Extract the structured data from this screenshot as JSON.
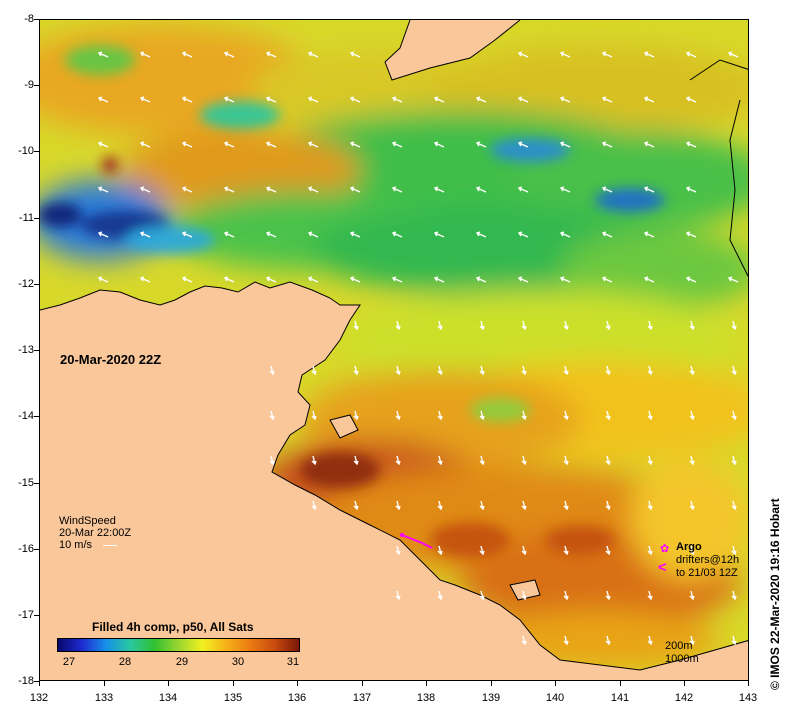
{
  "map": {
    "date_label": "20-Mar-2020 22Z",
    "x_ticks": [
      "132",
      "133",
      "134",
      "135",
      "136",
      "137",
      "138",
      "139",
      "140",
      "141",
      "142",
      "143"
    ],
    "y_ticks": [
      "-8",
      "-9",
      "-10",
      "-11",
      "-12",
      "-13",
      "-14",
      "-15",
      "-16",
      "-17",
      "-18"
    ],
    "colors": {
      "land": "#f9c79a",
      "coast": "#000000",
      "wind_arrow": "#ffffff",
      "argo": "#ff00ff"
    }
  },
  "wind": {
    "title": "WindSpeed",
    "time": "20-Mar 22:00Z",
    "scale": "10 m/s"
  },
  "colorbar": {
    "title": "Filled 4h comp, p50, All Sats",
    "ticks": [
      "27",
      "28",
      "29",
      "30",
      "31"
    ]
  },
  "legend": {
    "argo": "Argo",
    "drifters": "drifters@12h",
    "drifters_to": "to 21/03 12Z",
    "contour_200": "200m",
    "contour_1000": "1000m"
  },
  "credit": "© IMOS 22-Mar-2020 19:16 Hobart"
}
